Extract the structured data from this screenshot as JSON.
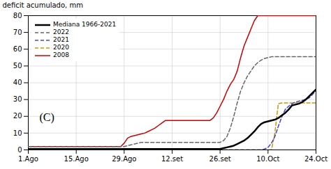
{
  "chart_data": {
    "type": "line",
    "y_label": "deficit acumulado, mm",
    "annotation": "(C)",
    "x": [
      0,
      1,
      2,
      3,
      4,
      5,
      6,
      7,
      8,
      9,
      10,
      11,
      12,
      13,
      14,
      15,
      16,
      17,
      18,
      19,
      20,
      21,
      22,
      23,
      24,
      25,
      26,
      27,
      28,
      29,
      30,
      31,
      32,
      33,
      34,
      35,
      36,
      37,
      38,
      39,
      40,
      41,
      42,
      43,
      44,
      45,
      46,
      47,
      48,
      49,
      50,
      51,
      52,
      53,
      54,
      55,
      56,
      57,
      58,
      59,
      60,
      61,
      62,
      63,
      64,
      65,
      66,
      67,
      68,
      69,
      70,
      71,
      72,
      73,
      74,
      75,
      76,
      77,
      78,
      79,
      80,
      81,
      82,
      83,
      84
    ],
    "xlim": [
      0,
      84
    ],
    "xticks": [
      {
        "value": 0,
        "label": "1.Ago"
      },
      {
        "value": 14,
        "label": "15.Ago"
      },
      {
        "value": 28,
        "label": "29.Ago"
      },
      {
        "value": 42,
        "label": "12.set"
      },
      {
        "value": 56,
        "label": "26.set"
      },
      {
        "value": 70,
        "label": "10.Oct"
      },
      {
        "value": 84,
        "label": "24.Oct"
      }
    ],
    "ylim": [
      0,
      80
    ],
    "yticks": [
      0,
      10,
      20,
      30,
      40,
      50,
      60,
      70,
      80
    ],
    "grid": true,
    "legend": "upper left",
    "series": [
      {
        "name": "Mediana 1966-2021",
        "color": "#000000",
        "line_style": "solid",
        "values": [
          0.5,
          0.5,
          0.5,
          0.5,
          0.5,
          0.5,
          0.5,
          0.5,
          0.5,
          0.5,
          0.5,
          0.5,
          0.5,
          0.5,
          0.5,
          0.5,
          0.5,
          0.5,
          0.5,
          0.5,
          0.5,
          0.5,
          0.5,
          0.5,
          0.5,
          0.5,
          0.5,
          0.5,
          0.5,
          0.5,
          0.5,
          0.5,
          0.5,
          0.5,
          0.5,
          0.5,
          0.5,
          0.5,
          0.5,
          0.5,
          0.5,
          0.5,
          0.5,
          0.5,
          0.5,
          0.5,
          0.5,
          0.5,
          0.5,
          0.5,
          0.5,
          0.5,
          0.5,
          0.5,
          0.5,
          0.5,
          0.5,
          1.0,
          1.5,
          2.0,
          2.5,
          3.5,
          4.5,
          5.5,
          7.0,
          9.0,
          11.0,
          13.5,
          15.5,
          16.5,
          17.0,
          17.5,
          18.0,
          19.0,
          20.5,
          22.0,
          24.0,
          26.5,
          27.0,
          27.5,
          28.5,
          30.0,
          32.0,
          34.0,
          36.0
        ]
      },
      {
        "name": "2022",
        "color": "#666666",
        "line_style": "dashed",
        "values": [
          2,
          2,
          2,
          2,
          2,
          2,
          2,
          2,
          2,
          2,
          2,
          2,
          2,
          2,
          2,
          2,
          2,
          2,
          2,
          2,
          2,
          2,
          2,
          2,
          2,
          2,
          2,
          2,
          2,
          2.5,
          3.0,
          3.5,
          4.0,
          4.5,
          4.5,
          4.5,
          4.5,
          4.5,
          4.5,
          4.5,
          4.5,
          4.5,
          4.5,
          4.5,
          4.5,
          4.5,
          4.5,
          4.5,
          4.5,
          4.5,
          4.5,
          4.5,
          4.5,
          4.5,
          4.5,
          4.5,
          4.5,
          5.5,
          8.0,
          13.0,
          20.0,
          28.0,
          35.0,
          40.0,
          44.0,
          47.0,
          50.0,
          52.0,
          53.5,
          54.5,
          55.0,
          55.5,
          55.5,
          55.5,
          55.5,
          55.5,
          55.5,
          55.5,
          55.5,
          55.5,
          55.5,
          55.5,
          55.5,
          55.5,
          55.5
        ]
      },
      {
        "name": "2021",
        "color": "#4444cc",
        "line_style": "dashed",
        "values": [
          0,
          0,
          0,
          0,
          0,
          0,
          0,
          0,
          0,
          0,
          0,
          0,
          0,
          0,
          0,
          0,
          0,
          0,
          0,
          0,
          0,
          0,
          0,
          0,
          0,
          0,
          0,
          0,
          0,
          0,
          0,
          0,
          0,
          0,
          0,
          0,
          0,
          0,
          0,
          0,
          0,
          0,
          0,
          0,
          0,
          0,
          0,
          0,
          0,
          0,
          0,
          0,
          0,
          0,
          0,
          0,
          0,
          0,
          0,
          0,
          0,
          0,
          0,
          0,
          0,
          0,
          0,
          0,
          0,
          0.5,
          1.5,
          4.0,
          8.0,
          14.0,
          19.5,
          24.0,
          26.0,
          27.5,
          28.5,
          29.0,
          29.5,
          30.0,
          31.0,
          33.0,
          35.5
        ]
      },
      {
        "name": "2020",
        "color": "#cc9900",
        "line_style": "dashed",
        "values": [
          0,
          0,
          0,
          0,
          0,
          0,
          0,
          0,
          0,
          0,
          0,
          0,
          0,
          0,
          0,
          0,
          0,
          0,
          0,
          0,
          0,
          0,
          0,
          0,
          0,
          0,
          0,
          0,
          0,
          0,
          0,
          0,
          0,
          0,
          0,
          0,
          0,
          0,
          0,
          0,
          0,
          0,
          0,
          0,
          0,
          0,
          0,
          0,
          0,
          0,
          0,
          0,
          0,
          0,
          0,
          0,
          0,
          0,
          0,
          0,
          0,
          0,
          0,
          0,
          0,
          0,
          0,
          0,
          0,
          0,
          0,
          0,
          10.0,
          27.5,
          28.0,
          28.0,
          28.0,
          28.0,
          28.0,
          28.0,
          28.0,
          28.0,
          28.0,
          28.0,
          28.0
        ]
      },
      {
        "name": "2008",
        "color": "#cc0000",
        "line_style": "solid",
        "values": [
          2,
          2,
          2,
          2,
          2,
          2,
          2,
          2,
          2,
          2,
          2,
          2,
          2,
          2,
          2,
          2,
          2,
          2,
          2,
          2,
          2,
          2,
          2,
          2,
          2,
          2,
          2,
          2,
          4.0,
          7.0,
          8.0,
          8.5,
          9.0,
          9.5,
          10.0,
          11.0,
          12.0,
          13.0,
          14.5,
          16.0,
          17.5,
          17.5,
          17.5,
          17.5,
          17.5,
          17.5,
          17.5,
          17.5,
          17.5,
          17.5,
          17.5,
          17.5,
          17.5,
          17.5,
          19.0,
          22.0,
          26.0,
          30.0,
          35.0,
          39.0,
          42.0,
          47.0,
          55.0,
          62.0,
          67.0,
          72.0,
          77.0,
          80.0,
          80.0,
          80.0,
          80.0,
          80.0,
          80.0,
          80.0,
          80.0,
          80.0,
          80.0,
          80.0,
          80.0,
          80.0,
          80.0,
          80.0,
          80.0,
          80.0,
          80.0
        ]
      }
    ]
  }
}
